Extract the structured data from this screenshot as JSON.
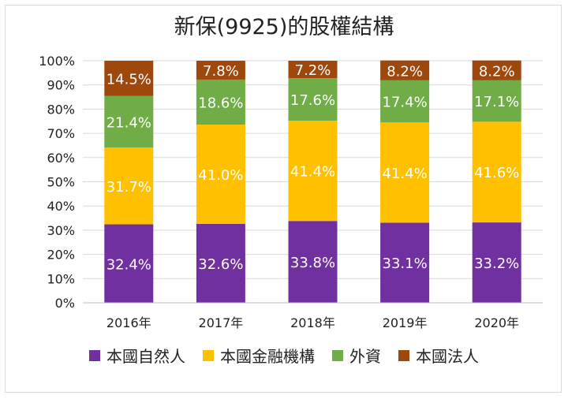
{
  "title": "新保(9925)的股權結構",
  "chart_data": {
    "type": "bar",
    "stacked": true,
    "percent_stacked": true,
    "title": "新保(9925)的股權結構",
    "categories": [
      "2016年",
      "2017年",
      "2018年",
      "2019年",
      "2020年"
    ],
    "series": [
      {
        "name": "本國自然人",
        "color": "#7030A0",
        "values": [
          32.4,
          32.6,
          33.8,
          33.1,
          33.2
        ]
      },
      {
        "name": "本國金融機構",
        "color": "#FFC000",
        "values": [
          31.7,
          41.0,
          41.4,
          41.4,
          41.6
        ]
      },
      {
        "name": "外資",
        "color": "#70AD47",
        "values": [
          21.4,
          18.6,
          17.6,
          17.4,
          17.1
        ]
      },
      {
        "name": "本國法人",
        "color": "#9E480E",
        "values": [
          14.5,
          7.8,
          7.2,
          8.2,
          8.2
        ]
      }
    ],
    "ylim": [
      0,
      100
    ],
    "yticks": [
      "0%",
      "10%",
      "20%",
      "30%",
      "40%",
      "50%",
      "60%",
      "70%",
      "80%",
      "90%",
      "100%"
    ],
    "grid": true,
    "legend_position": "bottom"
  }
}
